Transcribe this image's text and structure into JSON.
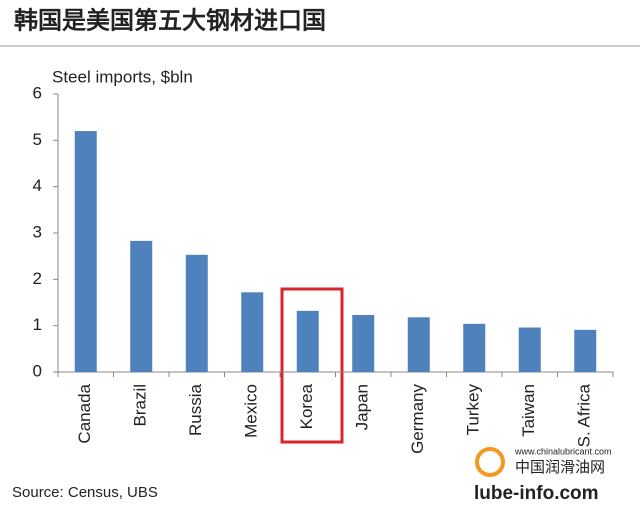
{
  "chart_data": {
    "type": "bar",
    "title": "韩国是美国第五大钢材进口国",
    "y_label": "Steel imports, $bln",
    "categories": [
      "Canada",
      "Brazil",
      "Russia",
      "Mexico",
      "Korea",
      "Japan",
      "Germany",
      "Turkey",
      "Taiwan",
      "S. Africa"
    ],
    "values": [
      5.2,
      2.83,
      2.53,
      1.72,
      1.32,
      1.23,
      1.18,
      1.04,
      0.96,
      0.91
    ],
    "color": "#4f81bd",
    "ylim": [
      0,
      6
    ],
    "yticks": [
      0,
      1,
      2,
      3,
      4,
      5,
      6
    ],
    "grid": false,
    "source": "Source:  Census, UBS"
  },
  "watermark": {
    "url": "www.chinalubricant.com",
    "name": "中国润滑油网",
    "domain": "lube-info.com"
  }
}
